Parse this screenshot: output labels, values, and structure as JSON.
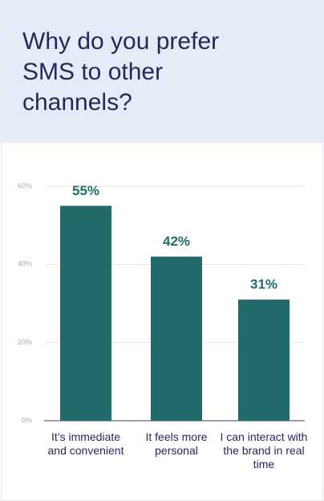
{
  "chart_data": {
    "type": "bar",
    "title": "Why do you prefer SMS to other channels?",
    "categories": [
      "It’s immediate and convenient",
      "It feels more personal",
      "I can interact with the brand in real time"
    ],
    "values": [
      55,
      42,
      31
    ],
    "value_labels": [
      "55%",
      "42%",
      "31%"
    ],
    "color": "#236b6b",
    "ylim": [
      0,
      60
    ],
    "yticks": [
      {
        "value": 0,
        "label": "0%"
      },
      {
        "value": 20,
        "label": "20%"
      },
      {
        "value": 40,
        "label": "40%"
      },
      {
        "value": 60,
        "label": "60%"
      }
    ],
    "grid": true
  }
}
